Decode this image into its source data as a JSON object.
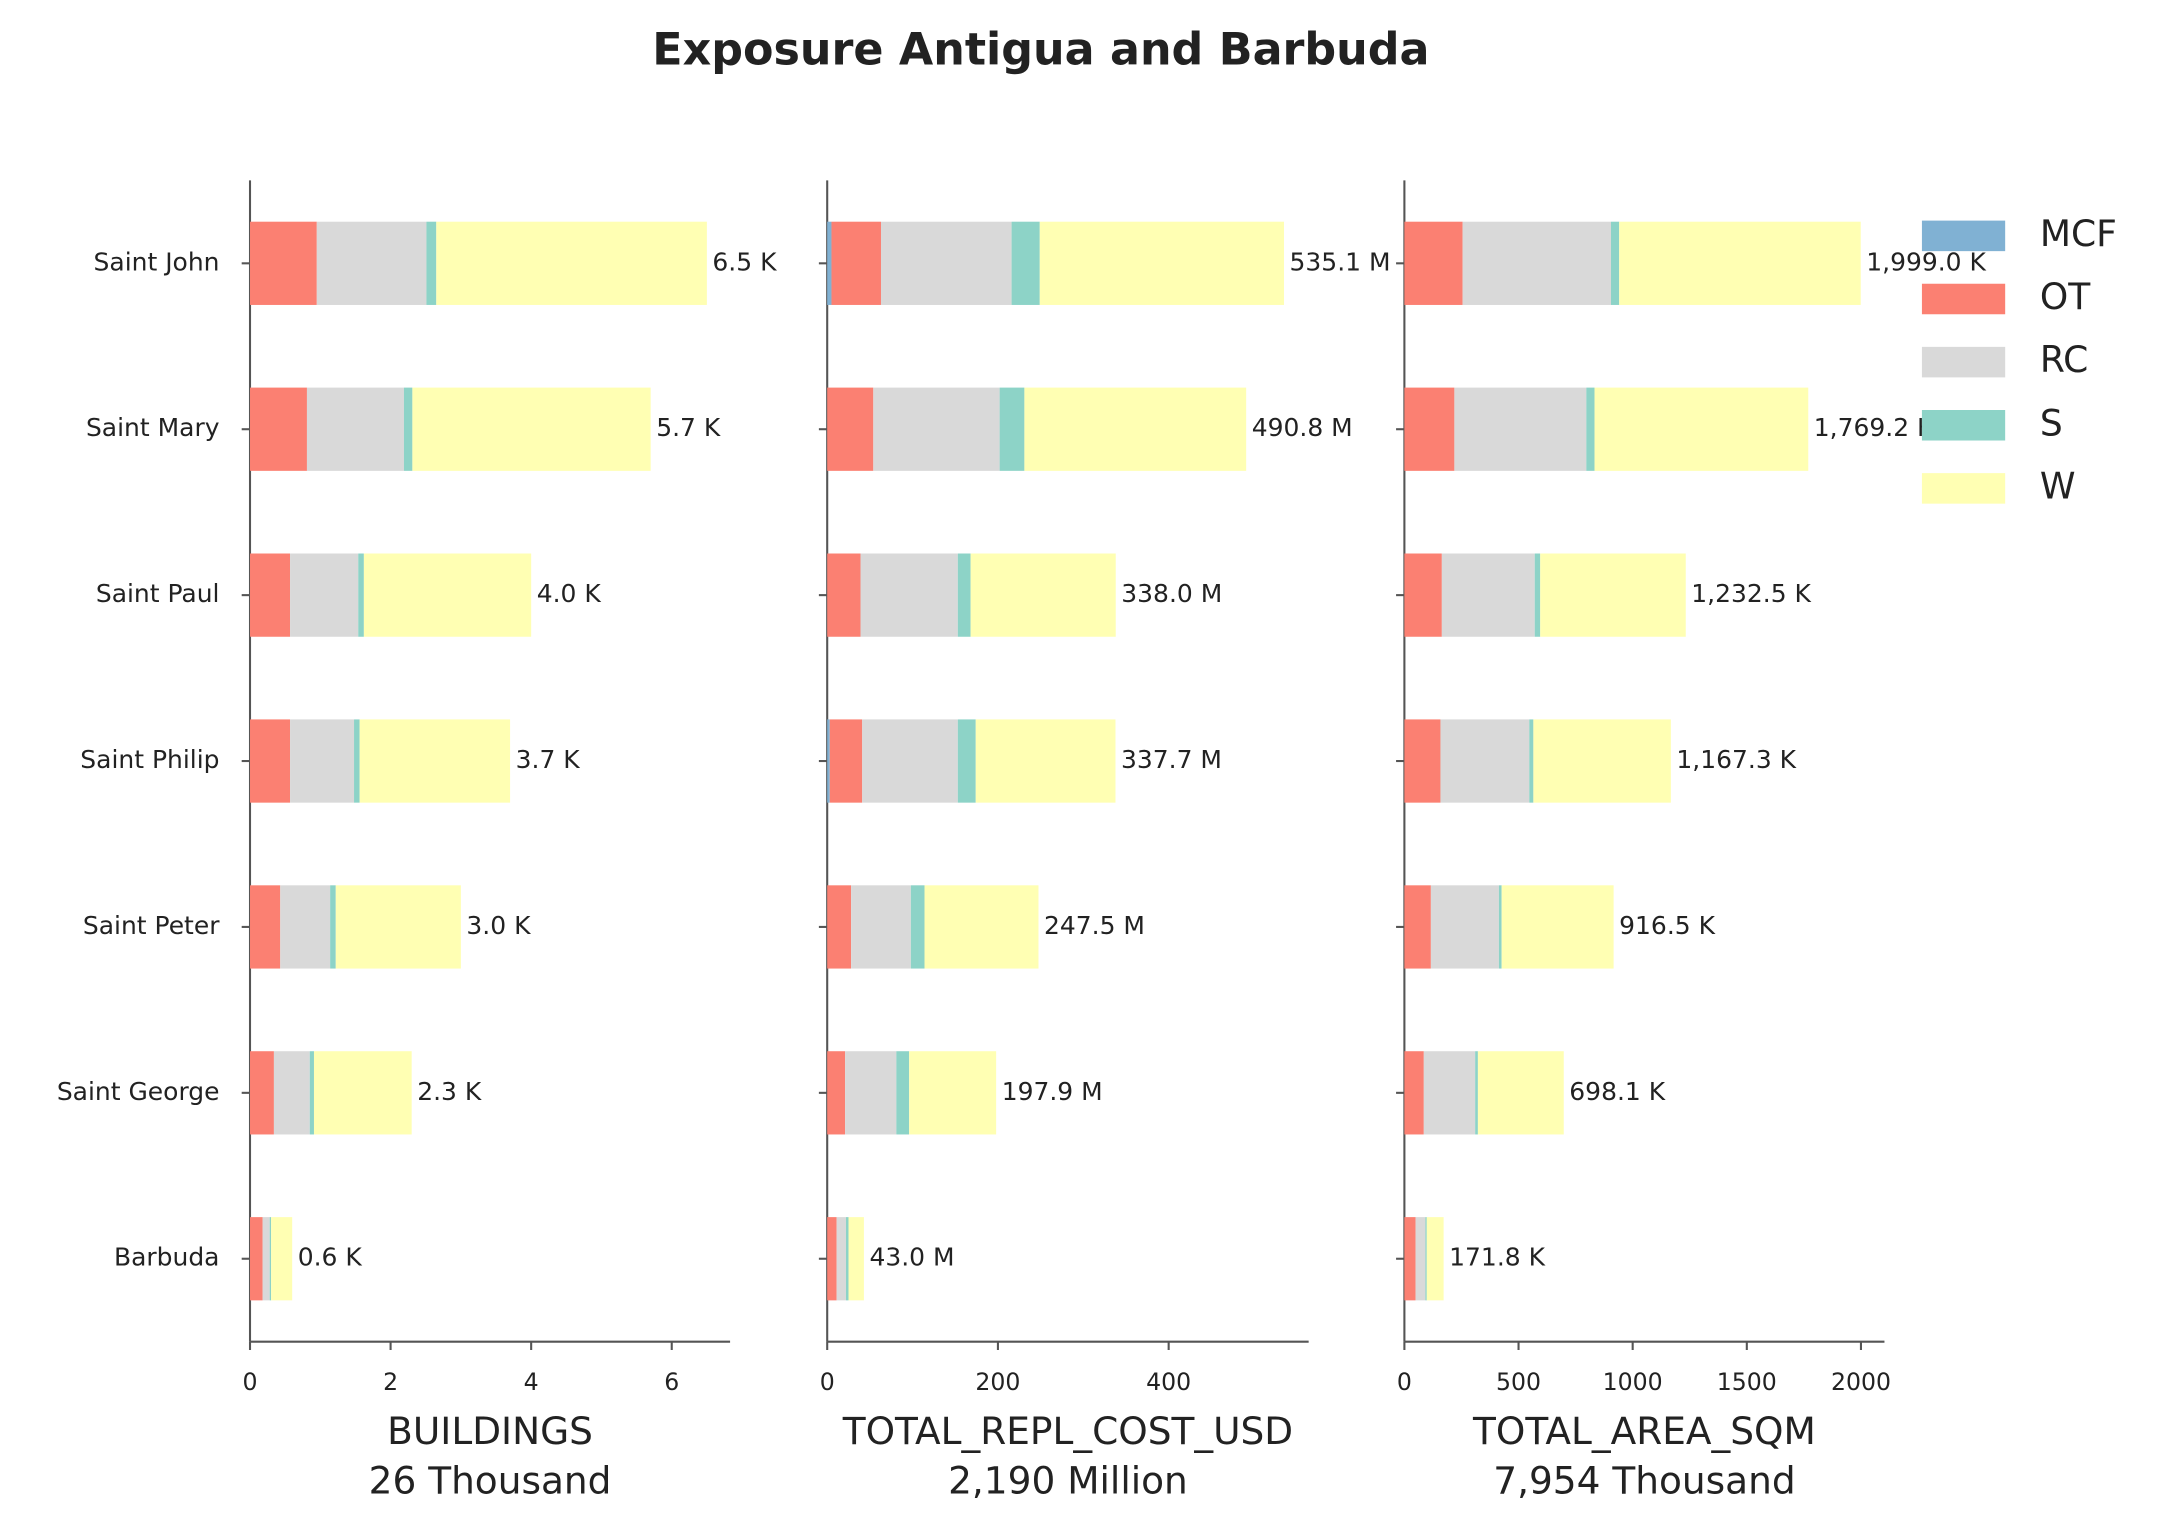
{
  "title": "Exposure Antigua and Barbuda",
  "chart_data": [
    {
      "type": "bar",
      "orientation": "horizontal",
      "categories": [
        "Saint John",
        "Saint Mary",
        "Saint Paul",
        "Saint Philip",
        "Saint Peter",
        "Saint George",
        "Barbuda"
      ],
      "series": [
        {
          "name": "MCF",
          "color": "#80b1d3",
          "values": [
            0,
            0,
            0,
            0,
            0,
            0,
            0
          ]
        },
        {
          "name": "OT",
          "color": "#fb8072",
          "values": [
            0.95,
            0.81,
            0.57,
            0.57,
            0.43,
            0.34,
            0.18
          ]
        },
        {
          "name": "RC",
          "color": "#d9d9d9",
          "values": [
            1.56,
            1.38,
            0.97,
            0.91,
            0.71,
            0.51,
            0.1
          ]
        },
        {
          "name": "S",
          "color": "#8dd3c7",
          "values": [
            0.14,
            0.12,
            0.08,
            0.08,
            0.08,
            0.06,
            0.02
          ]
        },
        {
          "name": "W",
          "color": "#ffffb3",
          "values": [
            3.85,
            3.39,
            2.38,
            2.14,
            1.78,
            1.39,
            0.3
          ]
        }
      ],
      "totals": [
        6.5,
        5.7,
        4.0,
        3.7,
        3.0,
        2.3,
        0.6
      ],
      "value_labels": [
        "6.5 K",
        "5.7 K",
        "4.0 K",
        "3.7 K",
        "3.0 K",
        "2.3 K",
        "0.6 K"
      ],
      "xlim": [
        0,
        6.83
      ],
      "xticks": [
        0,
        2,
        4,
        6
      ],
      "xlabel": "BUILDINGS",
      "xlabel_sub": "26 Thousand"
    },
    {
      "type": "bar",
      "orientation": "horizontal",
      "series": [
        {
          "values": [
            5,
            0,
            0,
            3,
            0,
            0,
            0
          ]
        },
        {
          "values": [
            58,
            54,
            39,
            38,
            28,
            21,
            11
          ]
        },
        {
          "values": [
            153,
            148,
            114,
            112,
            70,
            60,
            11
          ]
        },
        {
          "values": [
            33,
            29,
            15,
            21,
            16,
            15,
            3
          ]
        },
        {
          "values": [
            286.1,
            259.8,
            170,
            163.7,
            133.5,
            101.9,
            18
          ]
        }
      ],
      "totals": [
        535.1,
        490.8,
        338.0,
        337.7,
        247.5,
        197.9,
        43.0
      ],
      "value_labels": [
        "535.1 M",
        "490.8 M",
        "338.0 M",
        "337.7 M",
        "247.5 M",
        "197.9 M",
        "43.0 M"
      ],
      "xlim": [
        0,
        564
      ],
      "xticks": [
        0,
        200,
        400
      ],
      "xlabel": "TOTAL_REPL_COST_USD",
      "xlabel_sub": "2,190 Million"
    },
    {
      "type": "bar",
      "orientation": "horizontal",
      "series": [
        {
          "values": [
            0,
            0,
            0,
            0,
            0,
            0,
            0
          ]
        },
        {
          "values": [
            255,
            219,
            164,
            158,
            116,
            85,
            49
          ]
        },
        {
          "values": [
            650,
            578,
            407,
            389,
            298,
            225,
            43
          ]
        },
        {
          "values": [
            36,
            36,
            24,
            18,
            12,
            12,
            6
          ]
        },
        {
          "values": [
            1058,
            936.2,
            637.5,
            602.3,
            490.5,
            376.1,
            73.8
          ]
        }
      ],
      "totals": [
        1999.0,
        1769.2,
        1232.5,
        1167.3,
        916.5,
        698.1,
        171.8
      ],
      "value_labels": [
        "1,999.0 K",
        "1,769.2 K",
        "1,232.5 K",
        "1,167.3 K",
        "916.5 K",
        "698.1 K",
        "171.8 K"
      ],
      "xlim": [
        0,
        2103
      ],
      "xticks": [
        0,
        500,
        1000,
        1500,
        2000
      ],
      "xlabel": "TOTAL_AREA_SQM",
      "xlabel_sub": "7,954 Thousand"
    }
  ]
}
